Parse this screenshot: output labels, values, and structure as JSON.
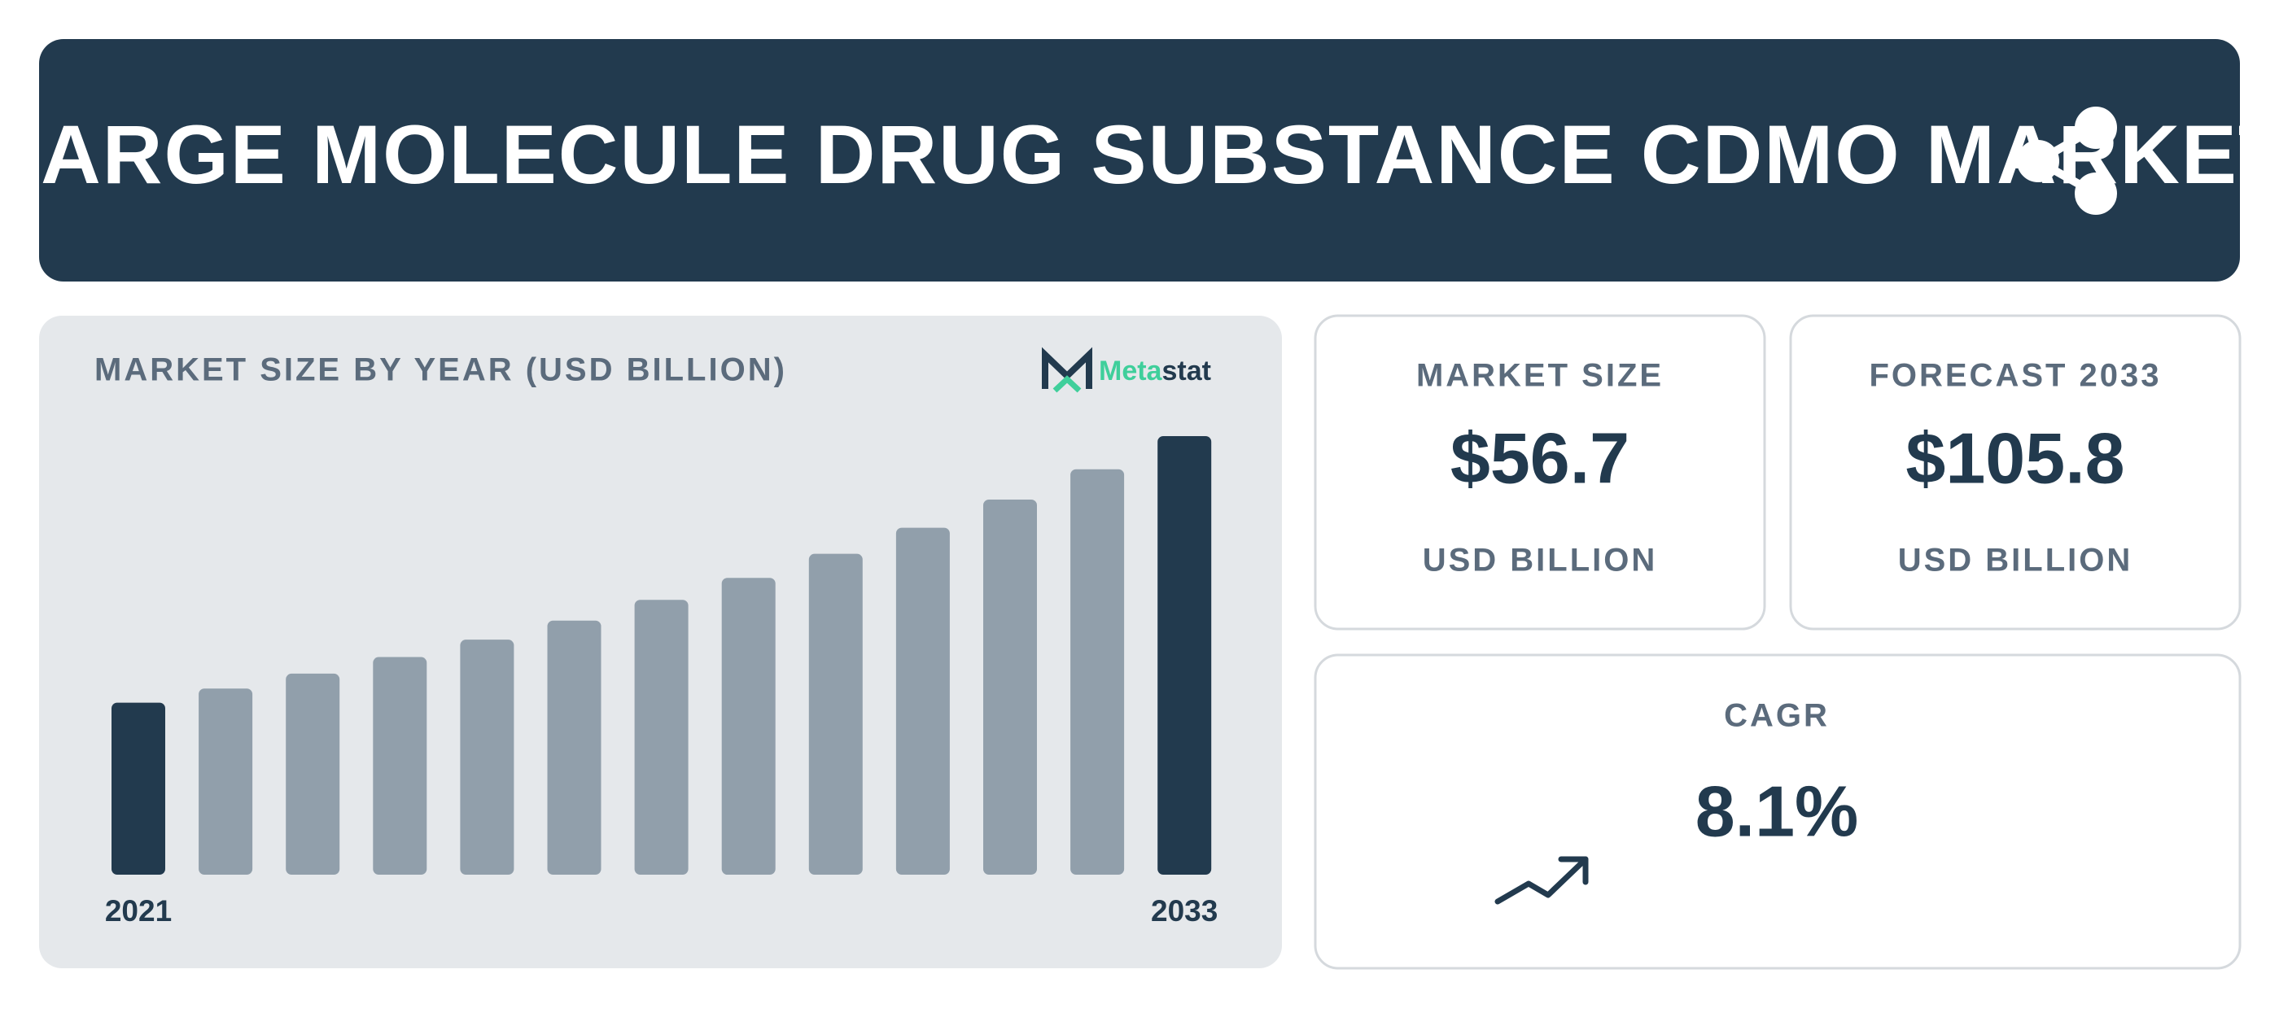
{
  "header": {
    "title": "LARGE MOLECULE DRUG SUBSTANCE CDMO MARKET"
  },
  "chart_data": {
    "type": "bar",
    "title": "MARKET SIZE BY YEAR (USD BILLION)",
    "categories": [
      "2021",
      null,
      null,
      null,
      null,
      null,
      null,
      null,
      null,
      null,
      null,
      null,
      "2033"
    ],
    "values": [
      41.5,
      44.9,
      48.5,
      52.5,
      56.7,
      61.3,
      66.3,
      71.6,
      77.4,
      83.7,
      90.5,
      97.8,
      105.8
    ],
    "colors": [
      "#223a4e",
      "#919fab",
      "#919fab",
      "#919fab",
      "#919fab",
      "#919fab",
      "#919fab",
      "#919fab",
      "#919fab",
      "#919fab",
      "#919fab",
      "#919fab",
      "#223a4e"
    ]
  },
  "logo": [
    "Meta",
    "stat"
  ],
  "cards": [
    {
      "label": "MARKET SIZE",
      "value": "$56.7",
      "unit": "USD BILLION"
    },
    {
      "label": "FORECAST 2033",
      "value": "$105.8",
      "unit": "USD BILLION"
    },
    {
      "label": "CAGR",
      "value": "8.1%"
    }
  ]
}
